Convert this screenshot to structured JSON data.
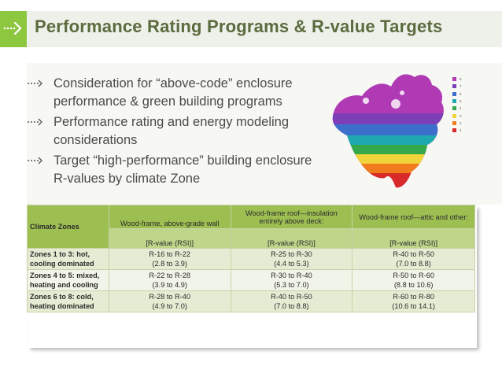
{
  "header": {
    "title": "Performance Rating Programs & R-value Targets"
  },
  "bullets": [
    "Consideration for “above-code” enclosure performance & green building programs",
    "Performance rating and energy modeling considerations",
    "Target “high-performance” building enclosure R-values by climate Zone"
  ],
  "legend": {
    "labels": [
      "8",
      "7",
      "6",
      "5",
      "4",
      "3",
      "2",
      "1"
    ],
    "colors": [
      "#b03ab4",
      "#7c3fb8",
      "#3b6fcb",
      "#20a8b0",
      "#35a84a",
      "#f0d43a",
      "#f07c1e",
      "#d92a2a"
    ]
  },
  "table": {
    "climate_header": "Climate Zones",
    "columns": [
      {
        "title": "Wood-frame, above-grade wall",
        "unit": "[R-value (RSI)]"
      },
      {
        "title": "Wood-frame roof—insulation entirely above deck:",
        "unit": "[R-value (RSI)]"
      },
      {
        "title": "Wood-frame roof—attic and other:",
        "unit": "[R-value (RSI)]"
      }
    ],
    "rows": [
      {
        "zone": "Zones 1 to 3: hot, cooling dominated",
        "cells": [
          [
            "R-16 to R-22",
            "(2.8 to 3.9)"
          ],
          [
            "R-25 to R-30",
            "(4.4 to 5.3)"
          ],
          [
            "R-40 to R-50",
            "(7.0 to 8.8)"
          ]
        ]
      },
      {
        "zone": "Zones 4 to 5: mixed, heating and cooling",
        "cells": [
          [
            "R-22 to R-28",
            "(3.9 to 4.9)"
          ],
          [
            "R-30 to R-40",
            "(5.3 to 7.0)"
          ],
          [
            "R-50 to R-60",
            "(8.8 to 10.6)"
          ]
        ]
      },
      {
        "zone": "Zones 6 to 8: cold, heating dominated",
        "cells": [
          [
            "R-28 to R-40",
            "(4.9 to 7.0)"
          ],
          [
            "R-40 to R-50",
            "(7.0 to 8.8)"
          ],
          [
            "R-60 to R-80",
            "(10.6 to 14.1)"
          ]
        ]
      }
    ]
  }
}
